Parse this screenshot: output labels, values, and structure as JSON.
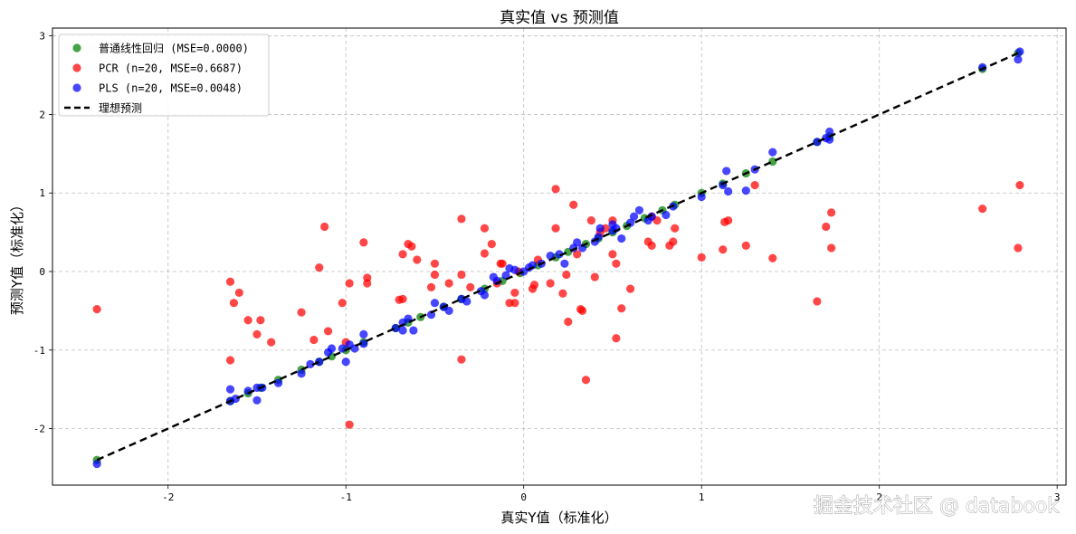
{
  "chart_data": {
    "type": "scatter",
    "title": "真实值 vs 预测值",
    "xlabel": "真实Y值（标准化）",
    "ylabel": "预测Y值（标准化）",
    "xlim": [
      -2.65,
      3.05
    ],
    "ylim": [
      -2.72,
      3.1
    ],
    "xticks": [
      -2,
      -1,
      0,
      1,
      2,
      3
    ],
    "yticks": [
      -2,
      -1,
      0,
      1,
      2,
      3
    ],
    "grid": true,
    "legend_position": "top-left",
    "series": [
      {
        "name": "普通线性回归 (MSE=0.0000)",
        "color": "#008000",
        "points": [
          [
            -2.4,
            -2.4
          ],
          [
            -1.65,
            -1.65
          ],
          [
            -1.55,
            -1.55
          ],
          [
            -1.48,
            -1.48
          ],
          [
            -1.38,
            -1.38
          ],
          [
            -1.25,
            -1.25
          ],
          [
            -1.15,
            -1.15
          ],
          [
            -1.08,
            -1.08
          ],
          [
            -1.0,
            -1.0
          ],
          [
            -0.9,
            -0.9
          ],
          [
            -0.72,
            -0.72
          ],
          [
            -0.65,
            -0.65
          ],
          [
            -0.58,
            -0.58
          ],
          [
            -0.45,
            -0.45
          ],
          [
            -0.35,
            -0.35
          ],
          [
            -0.22,
            -0.22
          ],
          [
            -0.12,
            -0.12
          ],
          [
            -0.02,
            -0.02
          ],
          [
            0.08,
            0.08
          ],
          [
            0.18,
            0.18
          ],
          [
            0.25,
            0.25
          ],
          [
            0.35,
            0.35
          ],
          [
            0.42,
            0.42
          ],
          [
            0.5,
            0.5
          ],
          [
            0.58,
            0.58
          ],
          [
            0.68,
            0.68
          ],
          [
            0.78,
            0.78
          ],
          [
            0.85,
            0.85
          ],
          [
            1.0,
            1.0
          ],
          [
            1.12,
            1.12
          ],
          [
            1.25,
            1.25
          ],
          [
            1.4,
            1.4
          ],
          [
            1.65,
            1.65
          ],
          [
            1.72,
            1.72
          ],
          [
            2.58,
            2.58
          ],
          [
            2.78,
            2.78
          ]
        ]
      },
      {
        "name": "PCR (n=20, MSE=0.6687)",
        "color": "#ff0000",
        "points": [
          [
            -2.4,
            -0.48
          ],
          [
            -1.65,
            -0.13
          ],
          [
            -1.65,
            -1.13
          ],
          [
            -1.63,
            -0.4
          ],
          [
            -1.6,
            -0.27
          ],
          [
            -1.55,
            -0.62
          ],
          [
            -1.5,
            -0.8
          ],
          [
            -1.48,
            -0.62
          ],
          [
            -1.42,
            -0.9
          ],
          [
            -1.25,
            -0.52
          ],
          [
            -1.18,
            -0.87
          ],
          [
            -1.15,
            0.05
          ],
          [
            -1.12,
            0.57
          ],
          [
            -1.1,
            -0.76
          ],
          [
            -1.02,
            -0.4
          ],
          [
            -1.0,
            -0.9
          ],
          [
            -0.98,
            -1.95
          ],
          [
            -0.98,
            -0.15
          ],
          [
            -0.9,
            0.37
          ],
          [
            -0.88,
            -0.08
          ],
          [
            -0.88,
            -0.15
          ],
          [
            -0.7,
            -0.36
          ],
          [
            -0.68,
            -0.35
          ],
          [
            -0.68,
            0.22
          ],
          [
            -0.65,
            0.35
          ],
          [
            -0.63,
            0.32
          ],
          [
            -0.6,
            0.15
          ],
          [
            -0.52,
            -0.2
          ],
          [
            -0.5,
            0.1
          ],
          [
            -0.5,
            -0.04
          ],
          [
            -0.42,
            -0.15
          ],
          [
            -0.35,
            0.67
          ],
          [
            -0.35,
            -1.12
          ],
          [
            -0.35,
            -0.04
          ],
          [
            -0.3,
            -0.2
          ],
          [
            -0.22,
            0.55
          ],
          [
            -0.22,
            0.23
          ],
          [
            -0.18,
            0.35
          ],
          [
            -0.15,
            -0.15
          ],
          [
            -0.13,
            0.1
          ],
          [
            -0.12,
            0.1
          ],
          [
            -0.08,
            -0.4
          ],
          [
            -0.05,
            -0.4
          ],
          [
            -0.05,
            -0.27
          ],
          [
            -0.03,
            0.0
          ],
          [
            0.05,
            -0.22
          ],
          [
            0.06,
            -0.17
          ],
          [
            0.08,
            0.15
          ],
          [
            0.15,
            -0.15
          ],
          [
            0.18,
            1.05
          ],
          [
            0.18,
            0.55
          ],
          [
            0.22,
            -0.28
          ],
          [
            0.24,
            -0.04
          ],
          [
            0.25,
            -0.64
          ],
          [
            0.28,
            0.85
          ],
          [
            0.3,
            0.22
          ],
          [
            0.32,
            -0.48
          ],
          [
            0.33,
            -0.5
          ],
          [
            0.35,
            -1.38
          ],
          [
            0.38,
            0.65
          ],
          [
            0.4,
            -0.07
          ],
          [
            0.43,
            0.5
          ],
          [
            0.46,
            0.55
          ],
          [
            0.5,
            0.22
          ],
          [
            0.5,
            0.65
          ],
          [
            0.52,
            -0.85
          ],
          [
            0.52,
            0.1
          ],
          [
            0.55,
            -0.47
          ],
          [
            0.6,
            -0.22
          ],
          [
            0.7,
            0.38
          ],
          [
            0.72,
            0.33
          ],
          [
            0.72,
            0.7
          ],
          [
            0.75,
            0.65
          ],
          [
            0.82,
            0.33
          ],
          [
            0.84,
            0.38
          ],
          [
            0.85,
            0.55
          ],
          [
            1.0,
            0.18
          ],
          [
            1.12,
            0.28
          ],
          [
            1.13,
            0.63
          ],
          [
            1.15,
            0.65
          ],
          [
            1.25,
            0.33
          ],
          [
            1.3,
            1.1
          ],
          [
            1.4,
            0.17
          ],
          [
            1.65,
            -0.38
          ],
          [
            1.7,
            0.57
          ],
          [
            1.73,
            0.75
          ],
          [
            1.73,
            0.3
          ],
          [
            2.58,
            0.8
          ],
          [
            2.78,
            0.3
          ],
          [
            2.79,
            1.1
          ]
        ]
      },
      {
        "name": "PLS (n=20, MSE=0.0048)",
        "color": "#0000ff",
        "points": [
          [
            -2.4,
            -2.45
          ],
          [
            -1.65,
            -1.5
          ],
          [
            -1.65,
            -1.65
          ],
          [
            -1.62,
            -1.62
          ],
          [
            -1.55,
            -1.52
          ],
          [
            -1.5,
            -1.48
          ],
          [
            -1.5,
            -1.64
          ],
          [
            -1.47,
            -1.48
          ],
          [
            -1.38,
            -1.42
          ],
          [
            -1.25,
            -1.3
          ],
          [
            -1.2,
            -1.18
          ],
          [
            -1.15,
            -1.15
          ],
          [
            -1.1,
            -1.03
          ],
          [
            -1.08,
            -0.98
          ],
          [
            -1.02,
            -0.98
          ],
          [
            -1.0,
            -1.15
          ],
          [
            -0.98,
            -0.93
          ],
          [
            -0.95,
            -0.98
          ],
          [
            -0.9,
            -0.8
          ],
          [
            -0.9,
            -0.92
          ],
          [
            -0.72,
            -0.72
          ],
          [
            -0.68,
            -0.65
          ],
          [
            -0.68,
            -0.75
          ],
          [
            -0.65,
            -0.6
          ],
          [
            -0.62,
            -0.75
          ],
          [
            -0.52,
            -0.55
          ],
          [
            -0.5,
            -0.4
          ],
          [
            -0.45,
            -0.45
          ],
          [
            -0.42,
            -0.5
          ],
          [
            -0.35,
            -0.35
          ],
          [
            -0.32,
            -0.38
          ],
          [
            -0.24,
            -0.25
          ],
          [
            -0.22,
            -0.3
          ],
          [
            -0.17,
            -0.07
          ],
          [
            -0.15,
            -0.12
          ],
          [
            -0.1,
            -0.05
          ],
          [
            -0.08,
            0.04
          ],
          [
            -0.05,
            0.02
          ],
          [
            0.0,
            0.0
          ],
          [
            0.03,
            0.05
          ],
          [
            0.05,
            0.08
          ],
          [
            0.1,
            0.1
          ],
          [
            0.15,
            0.2
          ],
          [
            0.2,
            0.22
          ],
          [
            0.23,
            0.1
          ],
          [
            0.28,
            0.3
          ],
          [
            0.3,
            0.37
          ],
          [
            0.33,
            0.3
          ],
          [
            0.4,
            0.38
          ],
          [
            0.42,
            0.44
          ],
          [
            0.43,
            0.55
          ],
          [
            0.5,
            0.52
          ],
          [
            0.5,
            0.6
          ],
          [
            0.52,
            0.55
          ],
          [
            0.55,
            0.42
          ],
          [
            0.6,
            0.62
          ],
          [
            0.62,
            0.7
          ],
          [
            0.65,
            0.78
          ],
          [
            0.7,
            0.65
          ],
          [
            0.72,
            0.7
          ],
          [
            0.8,
            0.72
          ],
          [
            0.84,
            0.83
          ],
          [
            1.0,
            0.95
          ],
          [
            1.12,
            1.1
          ],
          [
            1.14,
            1.28
          ],
          [
            1.15,
            1.02
          ],
          [
            1.25,
            1.03
          ],
          [
            1.3,
            1.3
          ],
          [
            1.4,
            1.52
          ],
          [
            1.65,
            1.65
          ],
          [
            1.7,
            1.7
          ],
          [
            1.72,
            1.78
          ],
          [
            1.72,
            1.68
          ],
          [
            2.58,
            2.6
          ],
          [
            2.78,
            2.7
          ],
          [
            2.79,
            2.8
          ]
        ]
      }
    ],
    "ideal_line": {
      "name": "理想预测",
      "color": "#000000",
      "points": [
        [
          -2.4,
          -2.4
        ],
        [
          2.79,
          2.79
        ]
      ]
    }
  },
  "watermark": "掘金技术社区 @ databook"
}
